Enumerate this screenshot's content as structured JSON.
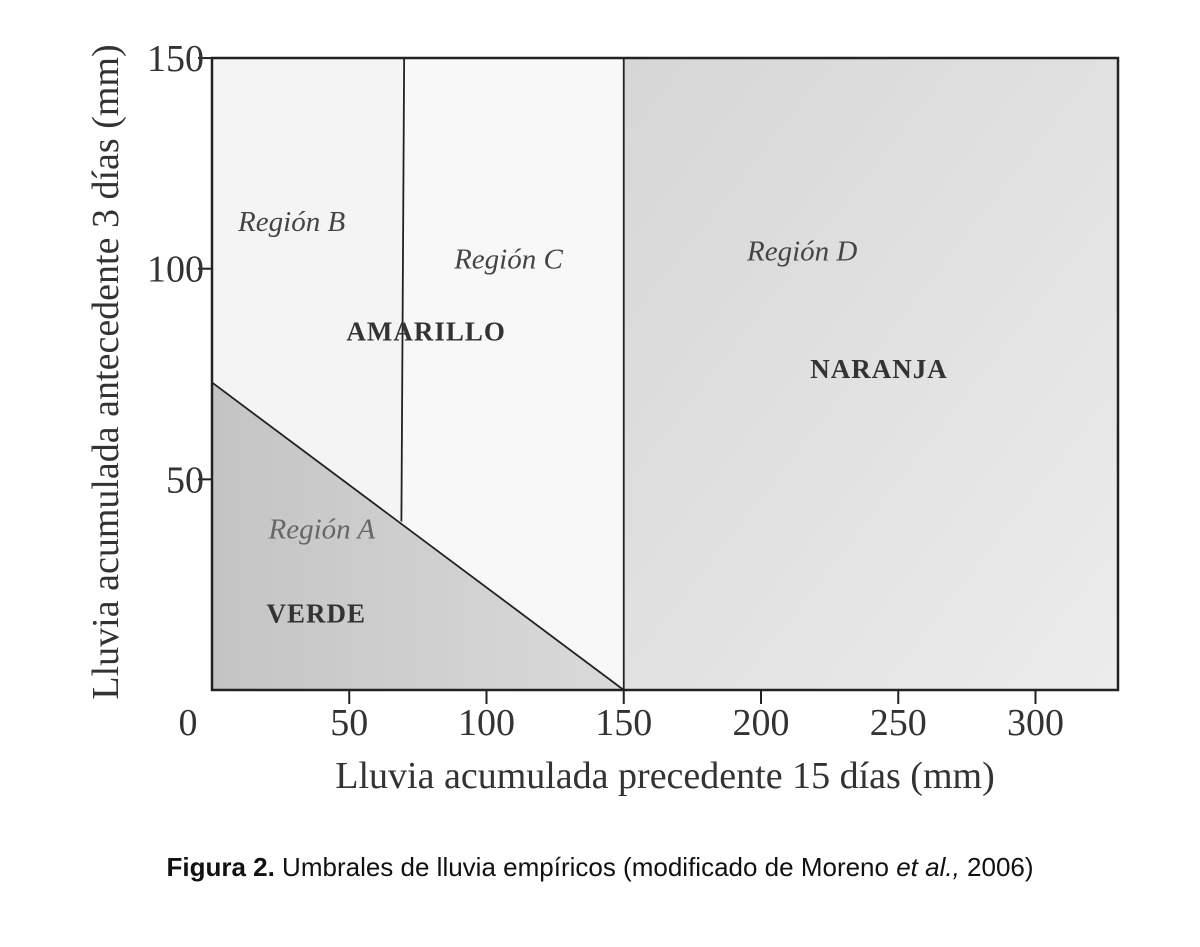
{
  "chart_data": {
    "type": "area",
    "xlabel": "Lluvia acumulada precedente 15 días (mm)",
    "ylabel": "Lluvia acumulada antecedente 3 días (mm)",
    "xlim": [
      0,
      330
    ],
    "ylim": [
      0,
      150
    ],
    "x_ticks": [
      0,
      50,
      100,
      150,
      200,
      250,
      300
    ],
    "y_ticks": [
      50,
      100,
      150
    ],
    "x_origin_label": "0",
    "grid": false,
    "threshold_lines": [
      {
        "from": [
          0,
          73
        ],
        "to": [
          150,
          0
        ]
      },
      {
        "from": [
          69,
          40
        ],
        "to": [
          70,
          150
        ]
      },
      {
        "from": [
          150,
          0
        ],
        "to": [
          150,
          150
        ]
      }
    ],
    "regions": [
      {
        "label": "Región A",
        "x": 40,
        "y": 36,
        "color": "#cfcfcf"
      },
      {
        "label": "Región B",
        "x": 29,
        "y": 109,
        "color": "#f4f4f4"
      },
      {
        "label": "Región C",
        "x": 108,
        "y": 100,
        "color": "#f8f8f8"
      },
      {
        "label": "Región D",
        "x": 215,
        "y": 102,
        "color": "#e2e2e2"
      }
    ],
    "zones": [
      {
        "label": "VERDE",
        "x": 38,
        "y": 16
      },
      {
        "label": "AMARILLO",
        "x": 78,
        "y": 83
      },
      {
        "label": "NARANJA",
        "x": 243,
        "y": 74
      }
    ]
  },
  "caption": {
    "bold": "Figura 2.",
    "text_before_italic": " Umbrales de lluvia empíricos (modificado de Moreno ",
    "italic": "et al.,",
    "text_after_italic": " 2006)"
  }
}
